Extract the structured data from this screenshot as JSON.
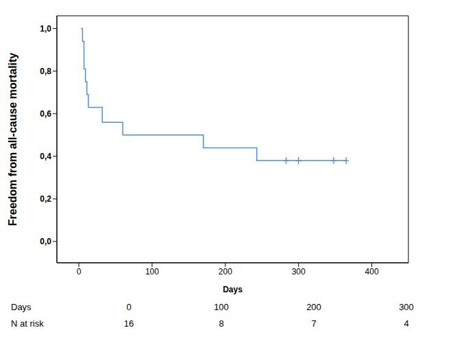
{
  "chart_data": {
    "type": "line",
    "x_label": "Days",
    "y_label": "Freedom from all-cause mortality",
    "xlim": [
      -30,
      450
    ],
    "xticks": [
      0,
      100,
      200,
      300,
      400
    ],
    "ylim": [
      -0.1,
      1.06
    ],
    "yticks": [
      {
        "value": 0,
        "label": "0,0"
      },
      {
        "value": 0.2,
        "label": "0,2"
      },
      {
        "value": 0.4,
        "label": "0,4"
      },
      {
        "value": 0.6,
        "label": "0,6"
      },
      {
        "value": 0.8,
        "label": "0,8"
      },
      {
        "value": 1,
        "label": "1,0"
      }
    ],
    "grid": false,
    "series": [
      {
        "color": "#4f8fd6",
        "line_style": "step",
        "marker": "none",
        "x": [
          3,
          5,
          7,
          9,
          11,
          13,
          32,
          60,
          170,
          243,
          365
        ],
        "values": [
          1,
          0.94,
          0.81,
          0.75,
          0.69,
          0.63,
          0.56,
          0.5,
          0.44,
          0.38,
          0.38
        ]
      },
      {
        "color": "#4f8fd6",
        "line_style": "none",
        "marker": "+",
        "x": [
          283,
          300,
          348,
          365
        ],
        "values": [
          0.38,
          0.38,
          0.38,
          0.38
        ]
      }
    ],
    "risk_table": {
      "row_labels": [
        "Days",
        "N at risk"
      ],
      "days": [
        0,
        100,
        200,
        300
      ],
      "n_at_risk": [
        16,
        8,
        7,
        4
      ]
    }
  }
}
